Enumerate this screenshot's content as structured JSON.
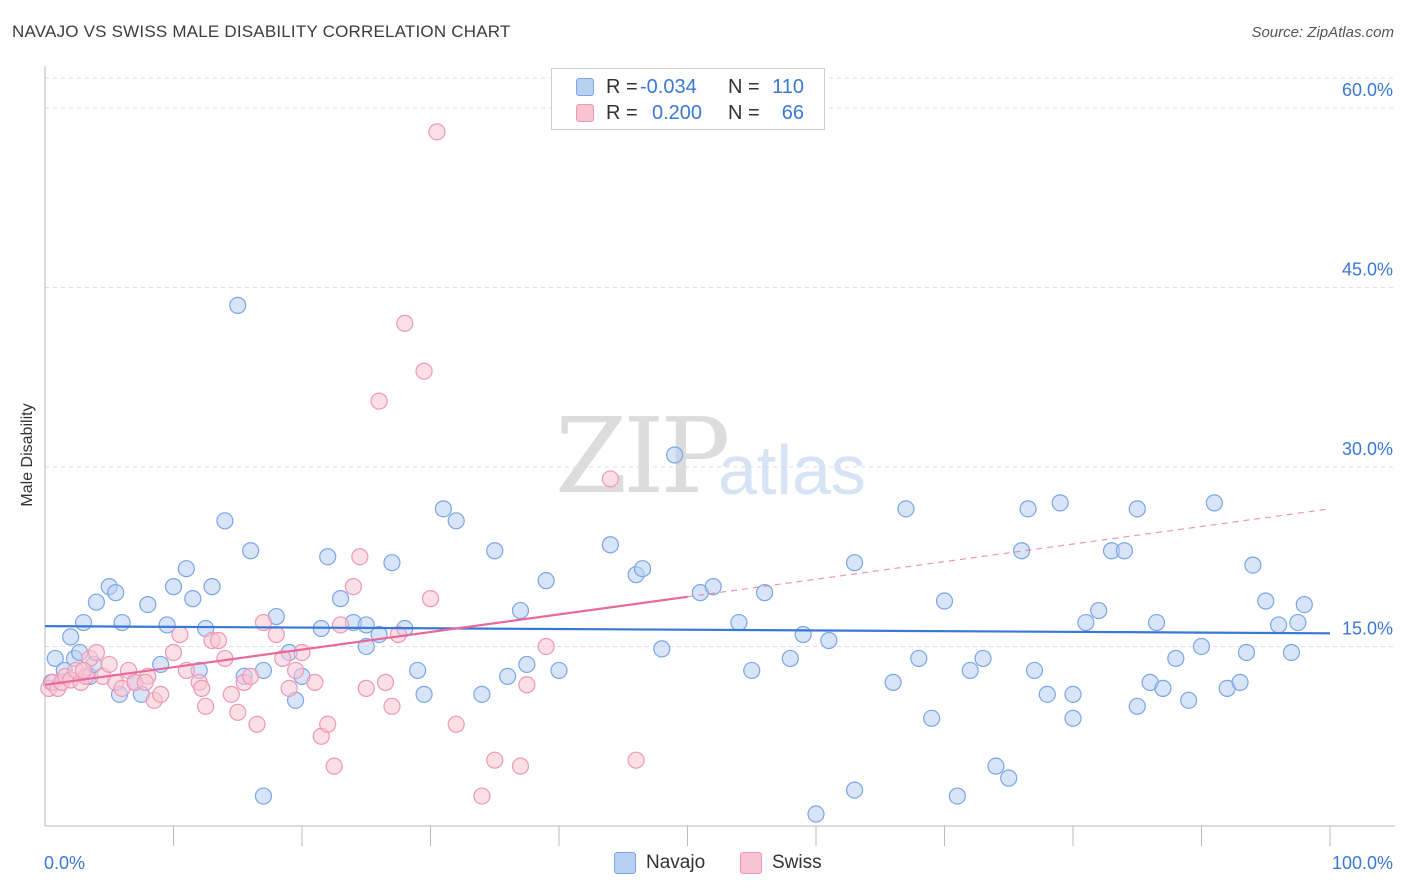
{
  "title": "NAVAJO VS SWISS MALE DISABILITY CORRELATION CHART",
  "source": "Source: ZipAtlas.com",
  "watermark": {
    "zip": "ZIP",
    "atlas": "atlas"
  },
  "colors": {
    "navajo_fill": "#b8d0f2",
    "navajo_stroke": "#7aa6e3",
    "navajo_line": "#3a78d6",
    "swiss_fill": "#f8c4d4",
    "swiss_stroke": "#ef98b4",
    "swiss_line": "#e8699a",
    "tick_label": "#3a78d6",
    "grid": "#dddddd"
  },
  "legend_top": {
    "rows": [
      {
        "r_label": "R =",
        "r_value": "-0.034",
        "n_label": "N =",
        "n_value": "110"
      },
      {
        "r_label": "R =",
        "r_value": "0.200",
        "n_label": "N =",
        "n_value": "66"
      }
    ]
  },
  "legend_bottom": {
    "navajo": "Navajo",
    "swiss": "Swiss"
  },
  "chart_data": {
    "type": "scatter",
    "title": "NAVAJO VS SWISS MALE DISABILITY CORRELATION CHART",
    "xlabel": "",
    "ylabel": "Male Disability",
    "xlim": [
      0,
      100
    ],
    "ylim": [
      0,
      62.5
    ],
    "x_tick_labels": [
      {
        "v": 0,
        "label": "0.0%"
      },
      {
        "v": 100,
        "label": "100.0%"
      }
    ],
    "x_minor_ticks": [
      10,
      20,
      30,
      40,
      50,
      60,
      70,
      80,
      90,
      100
    ],
    "y_ticks": [
      {
        "v": 15,
        "label": "15.0%"
      },
      {
        "v": 30,
        "label": "30.0%"
      },
      {
        "v": 45,
        "label": "45.0%"
      },
      {
        "v": 60,
        "label": "60.0%"
      }
    ],
    "grid": "horizontal dashed",
    "legend_position": "top-center and bottom",
    "series": [
      {
        "name": "Navajo",
        "r": -0.034,
        "n": 110,
        "trend": {
          "x0": 0,
          "y0": 16.7,
          "x1": 100,
          "y1": 16.1,
          "dashed_from": null
        },
        "points": [
          [
            0.5,
            12
          ],
          [
            0.8,
            14
          ],
          [
            1.5,
            13
          ],
          [
            2,
            15.8
          ],
          [
            2.3,
            14
          ],
          [
            2.7,
            14.5
          ],
          [
            3,
            17
          ],
          [
            3.5,
            12.5
          ],
          [
            4,
            18.7
          ],
          [
            5,
            20
          ],
          [
            5.5,
            19.5
          ],
          [
            6,
            17
          ],
          [
            7,
            12
          ],
          [
            7.5,
            11
          ],
          [
            8,
            18.5
          ],
          [
            9,
            13.5
          ],
          [
            10,
            20
          ],
          [
            11,
            21.5
          ],
          [
            11.5,
            19
          ],
          [
            12,
            13
          ],
          [
            13,
            20
          ],
          [
            14,
            25.5
          ],
          [
            15,
            43.5
          ],
          [
            16,
            23
          ],
          [
            17,
            13
          ],
          [
            18,
            17.5
          ],
          [
            19,
            14.5
          ],
          [
            19.5,
            10.5
          ],
          [
            20,
            12.5
          ],
          [
            21.5,
            16.5
          ],
          [
            22,
            22.5
          ],
          [
            23,
            19
          ],
          [
            24,
            17
          ],
          [
            25,
            15
          ],
          [
            26,
            16
          ],
          [
            27,
            22
          ],
          [
            28,
            16.5
          ],
          [
            29,
            13
          ],
          [
            31,
            26.5
          ],
          [
            32,
            25.5
          ],
          [
            34,
            11
          ],
          [
            35,
            23
          ],
          [
            37,
            18
          ],
          [
            37.5,
            13.5
          ],
          [
            39,
            20.5
          ],
          [
            40,
            13
          ],
          [
            46,
            21
          ],
          [
            46.5,
            21.5
          ],
          [
            48,
            14.8
          ],
          [
            49,
            31
          ],
          [
            51,
            19.5
          ],
          [
            52,
            20
          ],
          [
            54,
            17
          ],
          [
            55,
            13
          ],
          [
            56,
            19.5
          ],
          [
            58,
            14
          ],
          [
            59,
            16
          ],
          [
            61,
            15.5
          ],
          [
            63,
            22
          ],
          [
            67,
            26.5
          ],
          [
            68,
            14
          ],
          [
            69,
            9
          ],
          [
            70,
            18.8
          ],
          [
            72,
            13
          ],
          [
            73,
            14
          ],
          [
            74,
            5
          ],
          [
            76,
            23
          ],
          [
            76.5,
            26.5
          ],
          [
            77,
            13
          ],
          [
            78,
            11
          ],
          [
            79,
            27
          ],
          [
            80,
            11
          ],
          [
            81,
            17
          ],
          [
            82,
            18
          ],
          [
            83,
            23
          ],
          [
            84,
            23
          ],
          [
            85,
            26.5
          ],
          [
            86,
            12
          ],
          [
            87,
            11.5
          ],
          [
            88,
            14
          ],
          [
            89,
            10.5
          ],
          [
            90,
            15
          ],
          [
            91,
            27
          ],
          [
            92,
            11.5
          ],
          [
            93,
            12
          ],
          [
            94,
            21.8
          ],
          [
            95,
            18.8
          ],
          [
            96,
            16.8
          ],
          [
            97,
            14.5
          ],
          [
            98,
            18.5
          ],
          [
            25,
            16.8
          ],
          [
            29.5,
            11
          ],
          [
            9.5,
            16.8
          ],
          [
            15.5,
            12.5
          ],
          [
            36,
            12.5
          ],
          [
            5.8,
            11
          ],
          [
            3.8,
            13.5
          ],
          [
            12.5,
            16.5
          ],
          [
            44,
            23.5
          ],
          [
            66,
            12
          ],
          [
            17,
            2.5
          ],
          [
            60,
            1
          ],
          [
            63,
            3
          ],
          [
            75,
            4
          ],
          [
            80,
            9
          ],
          [
            85,
            10
          ],
          [
            97.5,
            17
          ],
          [
            93.5,
            14.5
          ],
          [
            86.5,
            17
          ],
          [
            71,
            2.5
          ]
        ]
      },
      {
        "name": "Swiss",
        "r": 0.2,
        "n": 66,
        "trend": {
          "x0": 0,
          "y0": 11.8,
          "x1": 100,
          "y1": 26.5,
          "dashed_from": 50
        },
        "points": [
          [
            0.3,
            11.5
          ],
          [
            0.6,
            12
          ],
          [
            1,
            11.5
          ],
          [
            1.3,
            12
          ],
          [
            1.6,
            12.5
          ],
          [
            2,
            12.2
          ],
          [
            2.4,
            13
          ],
          [
            2.8,
            12
          ],
          [
            3.2,
            12.5
          ],
          [
            3.5,
            14
          ],
          [
            4,
            14.5
          ],
          [
            4.5,
            12.5
          ],
          [
            5,
            13.5
          ],
          [
            5.5,
            12
          ],
          [
            6,
            11.5
          ],
          [
            6.5,
            13
          ],
          [
            7,
            12
          ],
          [
            8,
            12.5
          ],
          [
            8.5,
            10.5
          ],
          [
            9,
            11
          ],
          [
            10,
            14.5
          ],
          [
            10.5,
            16
          ],
          [
            11,
            13
          ],
          [
            12,
            12
          ],
          [
            12.5,
            10
          ],
          [
            13,
            15.5
          ],
          [
            13.5,
            15.5
          ],
          [
            14,
            14
          ],
          [
            14.5,
            11
          ],
          [
            15,
            9.5
          ],
          [
            15.5,
            12
          ],
          [
            16,
            12.5
          ],
          [
            16.5,
            8.5
          ],
          [
            17,
            17
          ],
          [
            18,
            16
          ],
          [
            18.5,
            14
          ],
          [
            19,
            11.5
          ],
          [
            19.5,
            13
          ],
          [
            20,
            14.5
          ],
          [
            21,
            12
          ],
          [
            21.5,
            7.5
          ],
          [
            22,
            8.5
          ],
          [
            22.5,
            5
          ],
          [
            23,
            16.8
          ],
          [
            24,
            20
          ],
          [
            24.5,
            22.5
          ],
          [
            25,
            11.5
          ],
          [
            26,
            35.5
          ],
          [
            26.5,
            12
          ],
          [
            27,
            10
          ],
          [
            27.5,
            16
          ],
          [
            28,
            42
          ],
          [
            29.5,
            38
          ],
          [
            30,
            19
          ],
          [
            30.5,
            58
          ],
          [
            32,
            8.5
          ],
          [
            34,
            2.5
          ],
          [
            35,
            5.5
          ],
          [
            37,
            5
          ],
          [
            39,
            15
          ],
          [
            44,
            29
          ],
          [
            46,
            5.5
          ],
          [
            37.5,
            11.8
          ],
          [
            3,
            13
          ],
          [
            7.8,
            12
          ],
          [
            12.2,
            11.5
          ]
        ]
      }
    ]
  }
}
